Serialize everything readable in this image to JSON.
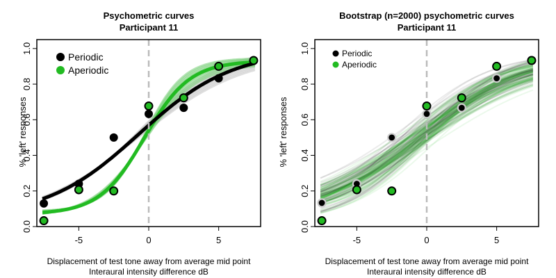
{
  "colors": {
    "periodic": "#000000",
    "aperiodic": "#22bb22",
    "ci_band_periodic": "#c8c8c8",
    "ci_band_aperiodic": "#7fd07f",
    "midline": "#bbbbbb"
  },
  "chart_data": [
    {
      "type": "scatter",
      "title": "Psychometric curves",
      "subtitle": "Participant 11",
      "xlabel": "Displacement of test tone away from average mid point",
      "xlabel2": "Interaural intensity difference dB",
      "ylabel": "% 'left' responses",
      "xlim": [
        -8,
        8
      ],
      "ylim": [
        0,
        1.05
      ],
      "xticks": [
        -5,
        0,
        5
      ],
      "xtick_labels": [
        "-5",
        "0",
        "5"
      ],
      "yticks": [
        0.0,
        0.2,
        0.4,
        0.6,
        0.8,
        1.0
      ],
      "ytick_labels": [
        "0.0",
        "0.2",
        "0.4",
        "0.6",
        "0.8",
        "1.0"
      ],
      "midline_x": 0,
      "legend": {
        "position": "top-left",
        "entries": [
          "Periodic",
          "Aperiodic"
        ]
      },
      "x": [
        -7.5,
        -5,
        -2.5,
        0,
        2.5,
        5,
        7.5
      ],
      "series": [
        {
          "name": "Periodic",
          "values": [
            0.13,
            0.24,
            0.5,
            0.633,
            0.667,
            0.833,
            0.933
          ],
          "fit": {
            "mid": -0.7,
            "slope": 0.3,
            "lower": 0.05,
            "upper": 0.99
          }
        },
        {
          "name": "Aperiodic",
          "values": [
            0.033,
            0.207,
            0.2,
            0.677,
            0.723,
            0.9,
            0.933
          ],
          "fit": {
            "mid": -0.3,
            "slope": 0.62,
            "lower": 0.07,
            "upper": 0.93
          }
        }
      ]
    },
    {
      "type": "scatter",
      "title": "Bootstrap (n=2000) psychometric curves",
      "subtitle": "Participant 11",
      "xlabel": "Displacement of test tone away from average mid point",
      "xlabel2": "Interaural intensity difference dB",
      "ylabel": "% 'left' responses",
      "xlim": [
        -8,
        8
      ],
      "ylim": [
        0,
        1.05
      ],
      "xticks": [
        -5,
        0,
        5
      ],
      "xtick_labels": [
        "-5",
        "0",
        "5"
      ],
      "yticks": [
        0.0,
        0.2,
        0.4,
        0.6,
        0.8,
        1.0
      ],
      "ytick_labels": [
        "0.0",
        "0.2",
        "0.4",
        "0.6",
        "0.8",
        "1.0"
      ],
      "midline_x": 0,
      "legend": {
        "position": "top-left",
        "entries": [
          "Periodic",
          "Aperiodic"
        ]
      },
      "x": [
        -7.5,
        -5,
        -2.5,
        0,
        2.5,
        5,
        7.5
      ],
      "series": [
        {
          "name": "Periodic",
          "values": [
            0.133,
            0.24,
            0.5,
            0.633,
            0.667,
            0.833,
            0.933
          ],
          "fit": {
            "mid": -0.8,
            "slope": 0.28,
            "lower": 0.0,
            "upper": 1.0
          }
        },
        {
          "name": "Aperiodic",
          "values": [
            0.033,
            0.207,
            0.2,
            0.677,
            0.723,
            0.9,
            0.933
          ],
          "fit": {
            "mid": -0.6,
            "slope": 0.28,
            "lower": 0.0,
            "upper": 1.0
          }
        }
      ]
    }
  ]
}
